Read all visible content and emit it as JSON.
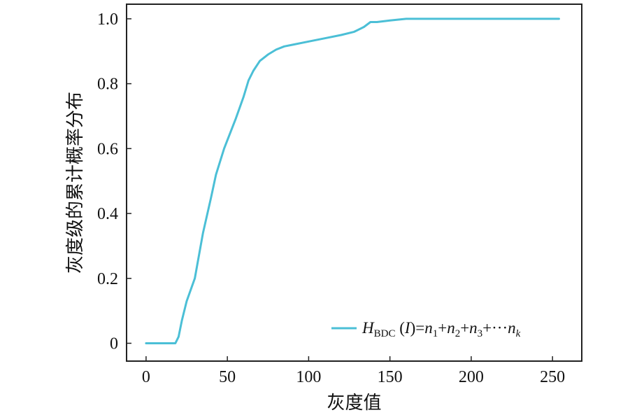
{
  "chart_data": {
    "type": "line",
    "xlabel": "灰度值",
    "ylabel": "灰度级的累计概率分布",
    "xlim": [
      -12,
      268
    ],
    "ylim": [
      -0.055,
      1.045
    ],
    "grid": false,
    "legend_position": "bottom-right",
    "x_ticks": [
      0,
      50,
      100,
      150,
      200,
      250
    ],
    "x_tick_labels": [
      "0",
      "50",
      "100",
      "150",
      "200",
      "250"
    ],
    "y_ticks": [
      0,
      0.2,
      0.4,
      0.6,
      0.8,
      1.0
    ],
    "y_tick_labels": [
      "0",
      "0.2",
      "0.4",
      "0.6",
      "0.8",
      "1.0"
    ],
    "series": [
      {
        "color": "#4bbfd6",
        "legend": {
          "parts": [
            {
              "text": "H",
              "style": "italic"
            },
            {
              "text": "BDC",
              "style": "sub"
            },
            {
              "text": " (",
              "style": "normal"
            },
            {
              "text": "I",
              "style": "italic"
            },
            {
              "text": ")=",
              "style": "normal"
            },
            {
              "text": "n",
              "style": "italic"
            },
            {
              "text": "1",
              "style": "sub"
            },
            {
              "text": "+",
              "style": "normal"
            },
            {
              "text": "n",
              "style": "italic"
            },
            {
              "text": "2",
              "style": "sub"
            },
            {
              "text": "+",
              "style": "normal"
            },
            {
              "text": "n",
              "style": "italic"
            },
            {
              "text": "3",
              "style": "sub"
            },
            {
              "text": "+···",
              "style": "normal"
            },
            {
              "text": "n",
              "style": "italic"
            },
            {
              "text": "k",
              "style": "sub-italic"
            }
          ]
        },
        "x": [
          0,
          10,
          18,
          20,
          22,
          25,
          30,
          35,
          40,
          43,
          48,
          55,
          60,
          63,
          66,
          70,
          75,
          80,
          85,
          90,
          100,
          110,
          120,
          128,
          134,
          138,
          142,
          150,
          160,
          165,
          170,
          200,
          254
        ],
        "y": [
          0,
          0,
          0,
          0.02,
          0.07,
          0.13,
          0.2,
          0.34,
          0.45,
          0.52,
          0.6,
          0.69,
          0.76,
          0.81,
          0.84,
          0.87,
          0.89,
          0.905,
          0.915,
          0.92,
          0.93,
          0.94,
          0.95,
          0.96,
          0.975,
          0.99,
          0.99,
          0.995,
          1.0,
          1.0,
          1.0,
          1.0,
          1.0
        ]
      }
    ]
  }
}
